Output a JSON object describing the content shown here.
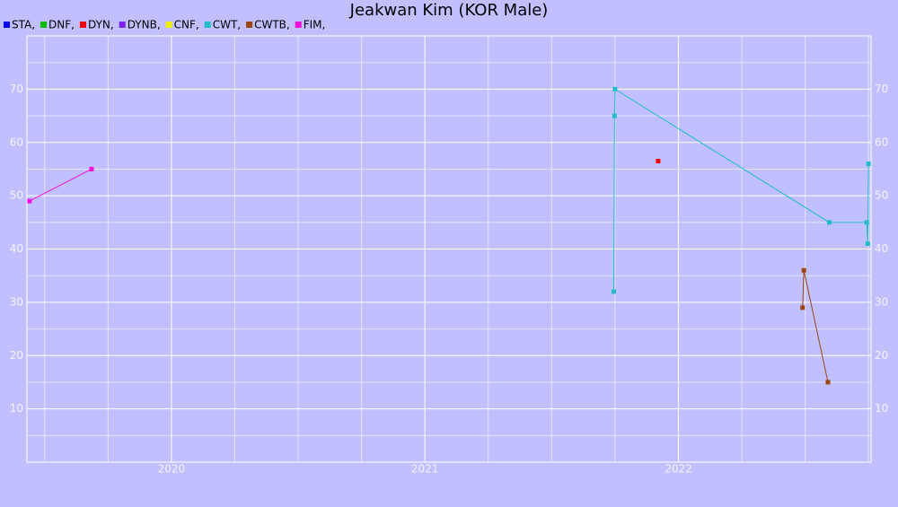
{
  "chart_data": {
    "type": "line",
    "title": "Jeakwan Kim (KOR Male)",
    "xlim": [
      2019.43,
      2022.76
    ],
    "xticks": [
      2020,
      2021,
      2022
    ],
    "xminorticks": [
      2019.5,
      2019.75,
      2020.25,
      2020.5,
      2020.75,
      2021.25,
      2021.5,
      2021.75,
      2022.25,
      2022.5,
      2022.75
    ],
    "ylim": [
      0,
      80
    ],
    "yticks": [
      10,
      20,
      30,
      40,
      50,
      60,
      70
    ],
    "yminorticks": [
      5,
      15,
      25,
      35,
      45,
      55,
      65,
      75
    ],
    "grid": true,
    "series": [
      {
        "name": "STA,",
        "color": "#0000ee",
        "x": [],
        "values": []
      },
      {
        "name": "DNF,",
        "color": "#00bb00",
        "x": [],
        "values": []
      },
      {
        "name": "DYN,",
        "color": "#ee0000",
        "x": [
          2021.92
        ],
        "values": [
          56.5
        ]
      },
      {
        "name": "DYNB,",
        "color": "#7722ee",
        "x": [],
        "values": []
      },
      {
        "name": "CNF,",
        "color": "#eeee00",
        "x": [],
        "values": []
      },
      {
        "name": "CWT,",
        "color": "#22bbcc",
        "x": [
          2021.745,
          2021.748,
          2021.75,
          2022.595,
          2022.743,
          2022.747,
          2022.75
        ],
        "values": [
          32,
          65,
          70,
          45,
          45,
          41,
          56
        ]
      },
      {
        "name": "CWTB,",
        "color": "#994411",
        "x": [
          2022.49,
          2022.495,
          2022.59
        ],
        "values": [
          29,
          36,
          15
        ]
      },
      {
        "name": "FIM,",
        "color": "#ee11dd",
        "x": [
          2019.44,
          2019.685
        ],
        "values": [
          49,
          55
        ]
      }
    ]
  }
}
